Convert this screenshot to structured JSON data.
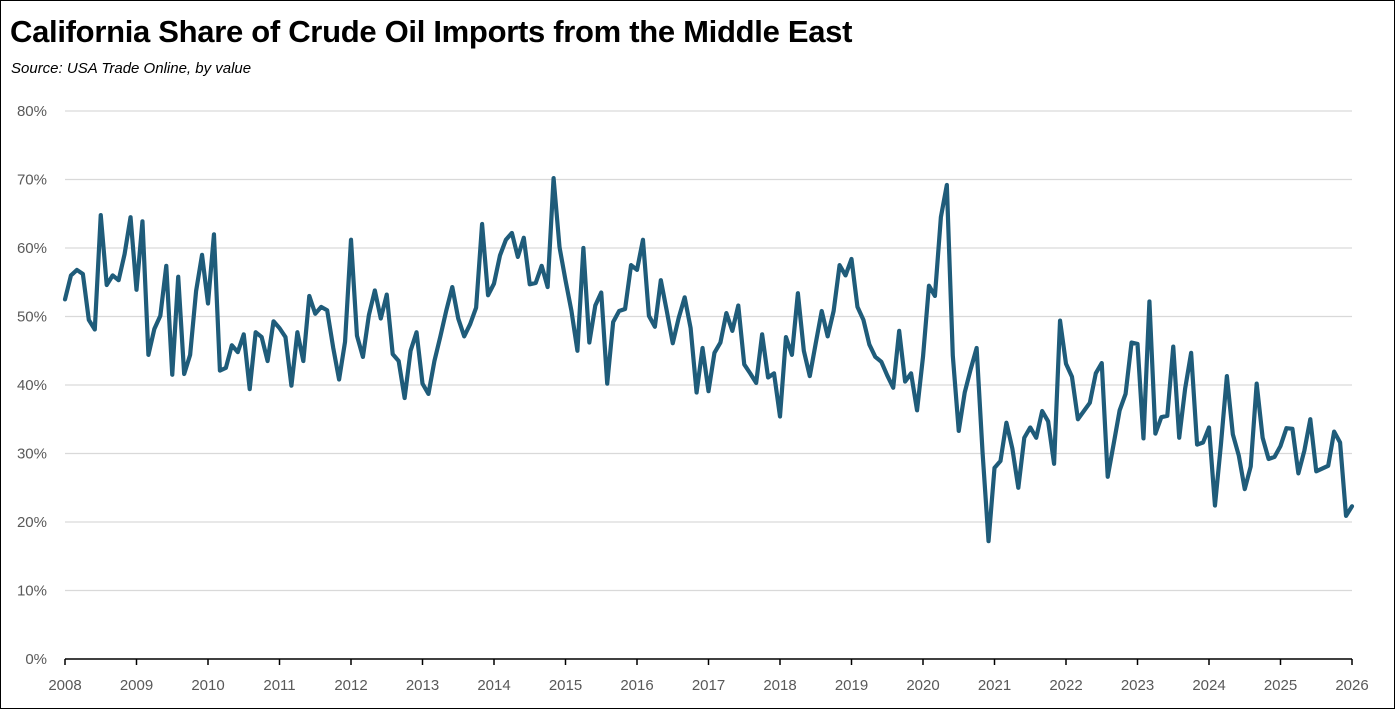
{
  "title": "California Share of Crude Oil Imports from the Middle East",
  "subtitle": "Source:  USA Trade Online, by value",
  "chart_data": {
    "type": "line",
    "title": "California Share of Crude Oil Imports from the Middle East",
    "subtitle": "Source:  USA Trade Online, by value",
    "xlabel": "",
    "ylabel": "",
    "x_start": "2008-01",
    "x_step": "month",
    "xlim": [
      2008,
      2026
    ],
    "ylim": [
      0,
      80
    ],
    "x_tick_labels": [
      "2008",
      "2009",
      "2010",
      "2011",
      "2012",
      "2013",
      "2014",
      "2015",
      "2016",
      "2017",
      "2018",
      "2019",
      "2020",
      "2021",
      "2022",
      "2023",
      "2024",
      "2025",
      "2026"
    ],
    "y_tick_labels": [
      "0%",
      "10%",
      "20%",
      "30%",
      "40%",
      "50%",
      "60%",
      "70%",
      "80%"
    ],
    "y_ticks": [
      0,
      10,
      20,
      30,
      40,
      50,
      60,
      70,
      80
    ],
    "grid": true,
    "legend": "none",
    "line_color": "#1F5C7A",
    "series": [
      {
        "values": [
          52.5,
          56,
          56.8,
          56.2,
          49.5,
          48.1,
          64.8,
          54.6,
          56,
          55.3,
          59.1,
          64.5,
          53.9,
          63.9,
          44.4,
          48.2,
          50.1,
          57.4,
          41.5,
          55.8,
          41.6,
          44.4,
          53.7,
          59,
          51.9,
          62,
          42.1,
          42.5,
          45.8,
          44.8,
          47.4,
          39.4,
          47.7,
          47,
          43.5,
          49.3,
          48.3,
          47,
          39.9,
          47.7,
          43.5,
          53,
          50.4,
          51.4,
          50.9,
          45.5,
          40.8,
          46.3,
          61.2,
          47.2,
          44.1,
          50.2,
          53.8,
          49.7,
          53.2,
          44.5,
          43.5,
          38.1,
          45,
          47.7,
          40.2,
          38.7,
          43.5,
          47.1,
          50.9,
          54.3,
          49.7,
          47.1,
          48.9,
          51.3,
          63.5,
          53.1,
          54.8,
          58.9,
          61.2,
          62.2,
          58.7,
          61.5,
          54.7,
          54.9,
          57.4,
          54.3,
          70.2,
          60.1,
          55.3,
          50.8,
          45,
          60,
          46.2,
          51.6,
          53.5,
          40.2,
          49.2,
          50.8,
          51.1,
          57.5,
          56.8,
          61.2,
          50.1,
          48.5,
          55.3,
          50.8,
          46.1,
          49.8,
          52.8,
          48.3,
          38.9,
          45.4,
          39.1,
          44.7,
          46.2,
          50.5,
          47.9,
          51.6,
          43,
          41.7,
          40.3,
          47.4,
          41.1,
          41.7,
          35.4,
          47,
          44.4,
          53.4,
          45,
          41.3,
          46.1,
          50.8,
          47.1,
          50.8,
          57.5,
          56,
          58.4,
          51.4,
          49.5,
          45.9,
          44.1,
          43.4,
          41.4,
          39.6,
          47.9,
          40.5,
          41.7,
          36.3,
          44.1,
          54.5,
          53,
          64.5,
          69.2,
          44.3,
          33.3,
          38.9,
          42.3,
          45.4,
          30.1,
          17.2,
          27.9,
          28.9,
          34.5,
          30.7,
          25,
          32.3,
          33.8,
          32.3,
          36.2,
          34.7,
          28.5,
          49.4,
          43.1,
          41.2,
          35,
          36.2,
          37.4,
          41.7,
          43.2,
          26.6,
          31.4,
          36.3,
          38.7,
          46.2,
          46,
          32.2,
          52.2,
          32.9,
          35.3,
          35.5,
          45.6,
          32.3,
          39.5,
          44.7,
          31.3,
          31.6,
          33.8,
          22.4,
          31.3,
          41.3,
          32.8,
          29.7,
          24.8,
          28.1,
          40.2,
          32.3,
          29.2,
          29.5,
          31.1,
          33.7,
          33.6,
          27.1,
          30.4,
          35,
          27.4,
          27.8,
          28.2,
          33.2,
          31.6,
          20.9,
          22.3
        ]
      }
    ]
  }
}
